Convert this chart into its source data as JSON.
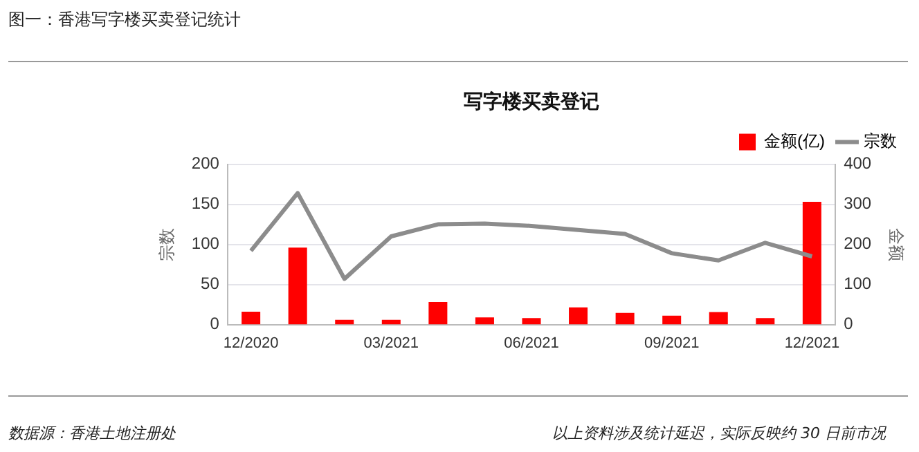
{
  "chart_data": {
    "type": "bar",
    "title": "写字楼买卖登记",
    "categories": [
      "12/2020",
      null,
      null,
      "03/2021",
      null,
      null,
      "06/2021",
      null,
      null,
      "09/2021",
      null,
      null,
      "12/2021"
    ],
    "series": [
      {
        "name": "金额(亿)",
        "axis": "y2",
        "color": "#ff0000",
        "values": [
          32,
          192,
          12,
          12,
          56,
          18,
          16,
          43,
          29,
          22,
          31,
          16,
          306
        ]
      },
      {
        "name": "宗数",
        "type": "line",
        "axis": "y",
        "color": "#8c8c8c",
        "values": [
          92,
          164,
          57,
          110,
          125,
          126,
          123,
          118,
          113,
          89,
          80,
          102,
          85
        ]
      }
    ],
    "ylabel": "宗数",
    "y2label": "金额",
    "ylim": [
      0,
      200
    ],
    "yticks": [
      0,
      50,
      100,
      150,
      200
    ],
    "y2lim": [
      0,
      400
    ],
    "y2ticks": [
      0,
      100,
      200,
      300,
      400
    ],
    "grid": "y",
    "legend": "top right",
    "marker": "none",
    "line_style": "solid",
    "annotations": [
      "图一：香港写字楼买卖登记统计",
      "数据源：香港土地注册处",
      "以上资料涉及统计延迟，实际反映约 30 日前市况"
    ]
  }
}
